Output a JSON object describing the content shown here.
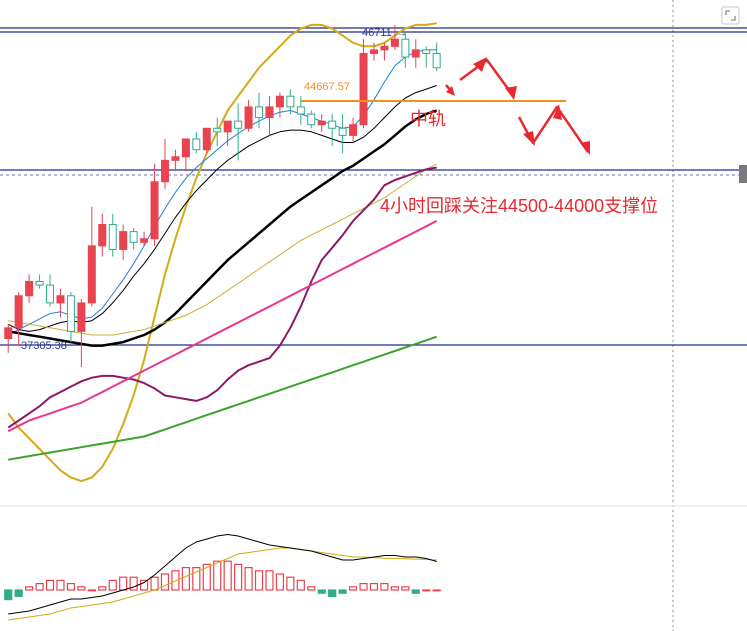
{
  "colors": {
    "up": "#e8434f",
    "down": "#2fae8a",
    "hline": "#1f2d8a",
    "bb": "#d4aa16",
    "ma_thin": "#000000",
    "ma_blue": "#1e7fd8",
    "ma_black": "#000000",
    "ma_olive": "#c7b238",
    "ma_purple": "#8b1a66",
    "ma_pink": "#e8378f",
    "ma_green": "#3aa32b",
    "annot": "#e8292f",
    "orange": "#f0911e",
    "macd_line": "#000000",
    "macd_signal": "#d4aa16"
  },
  "icons": {
    "fullscreen": "expand-icon"
  },
  "chart_data": {
    "type": "candlestick",
    "title": "",
    "price_labels": {
      "high": "46711",
      "high_arrow": "→",
      "mid": "44667.57",
      "low": "37305.38"
    },
    "levels": {
      "high": 46711,
      "mid": 44667.57,
      "low": 37305.38
    },
    "annotations": {
      "middle_band": "中轨",
      "support_note": "4小时回踩关注44500-44000支撑位"
    },
    "ylim": [
      33400,
      47600
    ],
    "candles": [
      [
        38100,
        38500,
        37700,
        38400
      ],
      [
        38400,
        39400,
        37900,
        39300
      ],
      [
        39300,
        39900,
        39100,
        39700
      ],
      [
        39700,
        39900,
        39500,
        39600
      ],
      [
        39600,
        39900,
        39000,
        39100
      ],
      [
        39100,
        39500,
        38700,
        39300
      ],
      [
        39300,
        39400,
        38000,
        38300
      ],
      [
        38300,
        39200,
        37300,
        39100
      ],
      [
        39100,
        41800,
        39000,
        40700
      ],
      [
        40700,
        41600,
        40400,
        41300
      ],
      [
        41300,
        41600,
        40400,
        40600
      ],
      [
        40600,
        41300,
        40300,
        41100
      ],
      [
        41100,
        41200,
        40600,
        40800
      ],
      [
        40800,
        41100,
        40700,
        40900
      ],
      [
        40900,
        43000,
        40700,
        42500
      ],
      [
        42500,
        43700,
        42300,
        43100
      ],
      [
        43100,
        43400,
        42800,
        43200
      ],
      [
        43200,
        43700,
        42800,
        43700
      ],
      [
        43700,
        43900,
        43300,
        43400
      ],
      [
        43400,
        44000,
        43300,
        44000
      ],
      [
        44000,
        44300,
        43500,
        43900
      ],
      [
        43900,
        44200,
        43500,
        44200
      ],
      [
        44200,
        44700,
        43100,
        44000
      ],
      [
        44000,
        44800,
        43900,
        44600
      ],
      [
        44600,
        45000,
        44000,
        44300
      ],
      [
        44300,
        44900,
        43800,
        44600
      ],
      [
        44600,
        45000,
        44300,
        44900
      ],
      [
        44900,
        45100,
        44400,
        44600
      ],
      [
        44600,
        44900,
        44100,
        44400
      ],
      [
        44400,
        44500,
        44000,
        44100
      ],
      [
        44100,
        44400,
        43900,
        44200
      ],
      [
        44200,
        44400,
        43500,
        44000
      ],
      [
        44000,
        44400,
        43300,
        43800
      ],
      [
        43800,
        44300,
        43600,
        44100
      ],
      [
        44100,
        46500,
        44000,
        46100
      ],
      [
        46100,
        46400,
        45900,
        46200
      ],
      [
        46200,
        46400,
        45900,
        46300
      ],
      [
        46300,
        46900,
        46200,
        46500
      ],
      [
        46500,
        46700,
        45700,
        46000
      ],
      [
        46000,
        46500,
        45700,
        46200
      ],
      [
        46200,
        46300,
        45700,
        46100
      ],
      [
        46100,
        46400,
        45600,
        45700
      ]
    ],
    "lines": [
      {
        "key": "bb_upper",
        "color": "#d4aa16",
        "width": 2,
        "values": [
          36000,
          35600,
          35300,
          35000,
          34700,
          34400,
          34200,
          34100,
          34200,
          34500,
          35000,
          35700,
          36500,
          37500,
          38700,
          39900,
          40900,
          41800,
          42600,
          43300,
          43900,
          44500,
          44900,
          45300,
          45700,
          46000,
          46300,
          46600,
          46800,
          46900,
          46900,
          46800,
          46600,
          46400,
          46300,
          46300,
          46400,
          46600,
          46800,
          46900,
          46900,
          46950
        ]
      },
      {
        "key": "ma_blue",
        "color": "#1e7fd8",
        "width": 1,
        "values": [
          38200,
          38350,
          38500,
          38650,
          38800,
          38850,
          38750,
          38650,
          38700,
          38950,
          39350,
          39750,
          40200,
          40700,
          41250,
          41750,
          42200,
          42600,
          42900,
          43150,
          43400,
          43650,
          43850,
          44050,
          44200,
          44350,
          44450,
          44500,
          44400,
          44300,
          44200,
          44100,
          44000,
          44050,
          44350,
          44800,
          45300,
          45750,
          46000,
          46150,
          46200,
          46200
        ]
      },
      {
        "key": "ma_thin",
        "color": "#000000",
        "width": 1,
        "values": [
          38500,
          38350,
          38300,
          38350,
          38450,
          38550,
          38600,
          38550,
          38600,
          38800,
          39100,
          39450,
          39850,
          40200,
          40600,
          41050,
          41500,
          41900,
          42250,
          42550,
          42850,
          43100,
          43300,
          43500,
          43650,
          43800,
          43900,
          43950,
          43950,
          43900,
          43800,
          43700,
          43600,
          43600,
          43750,
          44000,
          44300,
          44600,
          44850,
          45000,
          45100,
          45200
        ]
      },
      {
        "key": "ma_black",
        "color": "#000000",
        "width": 2.5,
        "values": [
          38300,
          38250,
          38200,
          38150,
          38100,
          38050,
          38000,
          37950,
          37900,
          37900,
          37950,
          38000,
          38100,
          38200,
          38350,
          38550,
          38800,
          39100,
          39400,
          39700,
          40000,
          40300,
          40550,
          40800,
          41050,
          41300,
          41550,
          41800,
          42000,
          42200,
          42400,
          42600,
          42800,
          42950,
          43150,
          43350,
          43550,
          43800,
          44050,
          44250,
          44400,
          44500
        ]
      },
      {
        "key": "ma_olive",
        "color": "#c7b238",
        "width": 1,
        "values": [
          38600,
          38550,
          38500,
          38450,
          38400,
          38350,
          38300,
          38250,
          38200,
          38200,
          38200,
          38250,
          38300,
          38350,
          38450,
          38550,
          38650,
          38750,
          38900,
          39050,
          39250,
          39450,
          39650,
          39850,
          40050,
          40250,
          40450,
          40650,
          40850,
          41000,
          41150,
          41300,
          41450,
          41600,
          41750,
          41900,
          42050,
          42250,
          42450,
          42650,
          42850,
          43000
        ]
      },
      {
        "key": "ma_purple",
        "color": "#8b1a66",
        "width": 2,
        "values": [
          35600,
          35800,
          36000,
          36200,
          36450,
          36600,
          36750,
          36900,
          37000,
          37050,
          37050,
          37000,
          36950,
          36850,
          36700,
          36500,
          36450,
          36400,
          36350,
          36450,
          36650,
          36950,
          37200,
          37350,
          37450,
          37550,
          37900,
          38400,
          39000,
          39700,
          40300,
          40650,
          41000,
          41400,
          41700,
          42000,
          42400,
          42550,
          42650,
          42750,
          42850,
          42900
        ]
      },
      {
        "key": "ma_pink",
        "color": "#e8378f",
        "width": 2,
        "values": [
          35500,
          35650,
          35800,
          35900,
          36000,
          36100,
          36200,
          36300,
          36450,
          36600,
          36750,
          36900,
          37050,
          37200,
          37350,
          37500,
          37650,
          37800,
          37950,
          38100,
          38250,
          38400,
          38550,
          38700,
          38850,
          39000,
          39150,
          39300,
          39450,
          39600,
          39750,
          39900,
          40050,
          40200,
          40350,
          40500,
          40650,
          40800,
          40950,
          41100,
          41250,
          41400
        ]
      },
      {
        "key": "ma_green",
        "color": "#3aa32b",
        "width": 2,
        "values": [
          34700,
          34750,
          34800,
          34850,
          34900,
          34950,
          35000,
          35050,
          35100,
          35150,
          35200,
          35250,
          35300,
          35350,
          35450,
          35550,
          35650,
          35750,
          35850,
          35950,
          36050,
          36150,
          36250,
          36350,
          36450,
          36550,
          36650,
          36750,
          36850,
          36950,
          37050,
          37150,
          37250,
          37350,
          37450,
          37550,
          37650,
          37750,
          37850,
          37950,
          38050,
          38150
        ]
      }
    ],
    "macd": {
      "hist": [
        -3,
        -2,
        1,
        2,
        3,
        3,
        2,
        1,
        0,
        1,
        3,
        4,
        4,
        3,
        4,
        5,
        6,
        7,
        7,
        8,
        9,
        9,
        8,
        7,
        6,
        6,
        5,
        4,
        3,
        1,
        -1,
        -2,
        -1,
        1,
        2,
        2,
        2,
        1,
        1,
        -1,
        0,
        0
      ],
      "dif": [
        -8,
        -7.5,
        -7,
        -6,
        -5,
        -4,
        -3,
        -3,
        -2.5,
        -2,
        -1,
        0,
        1,
        2.5,
        5,
        8,
        11,
        14,
        16,
        17,
        18,
        18.5,
        18,
        17,
        16,
        15,
        14.5,
        14,
        13.5,
        13,
        12,
        11,
        10,
        10,
        10.5,
        11,
        11.5,
        11.5,
        11,
        11,
        10.5,
        9.5
      ],
      "dea": [
        -10,
        -9.5,
        -9,
        -8.5,
        -8,
        -7,
        -6,
        -5.5,
        -5,
        -4.5,
        -4,
        -3,
        -2,
        -1,
        0,
        1.5,
        3,
        4.5,
        6,
        7.5,
        9,
        10.5,
        12,
        12.5,
        13,
        13.5,
        14,
        14,
        13.5,
        13,
        12.5,
        12,
        11.5,
        11,
        11,
        10.8,
        10.6,
        10.5,
        10.4,
        10.3,
        10.2,
        10
      ]
    }
  }
}
